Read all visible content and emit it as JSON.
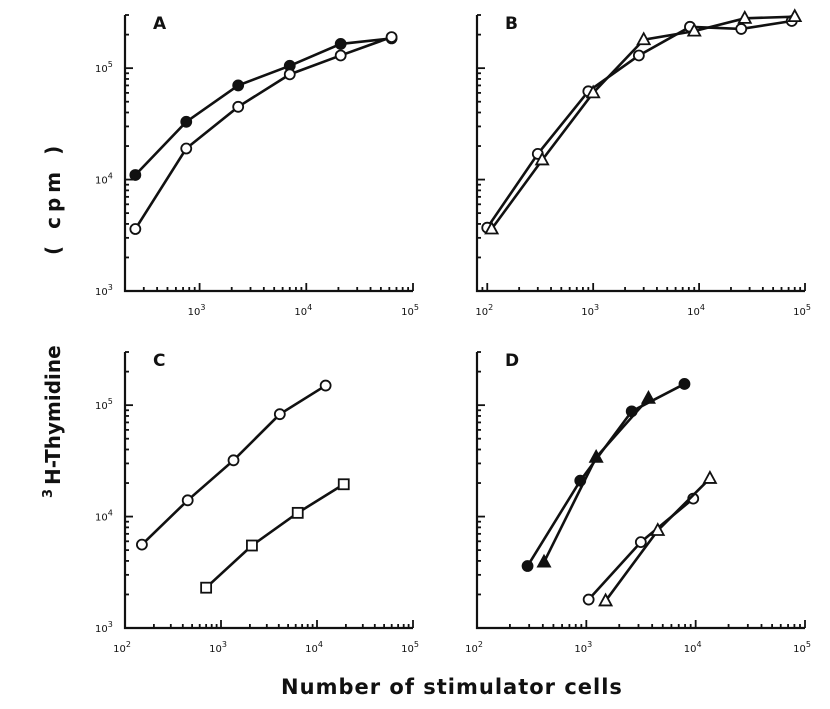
{
  "figure": {
    "xlabel": "Number of stimulator cells",
    "ylabel_main": "H-Thymidine",
    "ylabel_sup": "3",
    "ylabel_unit": "( cpm )"
  },
  "chart_data": [
    {
      "type": "line",
      "panel": "A",
      "xscale": "log",
      "yscale": "log",
      "xlim": [
        200,
        100000
      ],
      "ylim": [
        1000,
        300000
      ],
      "xticks": [
        {
          "exp": "3"
        },
        {
          "exp": "4"
        },
        {
          "exp": "5"
        }
      ],
      "yticks": [
        {
          "exp": "3"
        },
        {
          "exp": "4"
        },
        {
          "exp": "5"
        }
      ],
      "series": [
        {
          "marker": "circle-filled",
          "x": [
            250,
            750,
            2300,
            7000,
            21000,
            63000
          ],
          "y": [
            11000,
            33000,
            70000,
            105000,
            165000,
            185000
          ]
        },
        {
          "marker": "circle-open",
          "x": [
            250,
            750,
            2300,
            7000,
            21000,
            63000
          ],
          "y": [
            3600,
            19000,
            45000,
            88000,
            130000,
            190000
          ]
        }
      ]
    },
    {
      "type": "line",
      "panel": "B",
      "xscale": "log",
      "yscale": "log",
      "xlim": [
        80,
        100000
      ],
      "ylim": [
        1000,
        300000
      ],
      "xticks": [
        {
          "exp": "2"
        },
        {
          "exp": "3"
        },
        {
          "exp": "4"
        },
        {
          "exp": "5"
        }
      ],
      "yticks": [],
      "series": [
        {
          "marker": "circle-open",
          "x": [
            100,
            300,
            900,
            2700,
            8200,
            25000,
            75000
          ],
          "y": [
            3700,
            17000,
            62000,
            130000,
            235000,
            225000,
            265000
          ]
        },
        {
          "marker": "triangle-open",
          "x": [
            110,
            330,
            1000,
            3000,
            9000,
            27000,
            80000
          ],
          "y": [
            3600,
            15000,
            60000,
            180000,
            215000,
            280000,
            290000
          ]
        }
      ]
    },
    {
      "type": "line",
      "panel": "C",
      "xscale": "log",
      "yscale": "log",
      "xlim": [
        100,
        100000
      ],
      "ylim": [
        1000,
        300000
      ],
      "xticks": [
        {
          "exp": "2"
        },
        {
          "exp": "3"
        },
        {
          "exp": "4"
        },
        {
          "exp": "5"
        }
      ],
      "yticks": [
        {
          "exp": "3"
        },
        {
          "exp": "4"
        },
        {
          "exp": "5"
        }
      ],
      "series": [
        {
          "marker": "circle-open",
          "x": [
            150,
            450,
            1350,
            4100,
            12300
          ],
          "y": [
            5600,
            14000,
            32000,
            83000,
            150000
          ]
        },
        {
          "marker": "square-open",
          "x": [
            700,
            2100,
            6300,
            19000
          ],
          "y": [
            2300,
            5500,
            10800,
            19500
          ]
        }
      ]
    },
    {
      "type": "line",
      "panel": "D",
      "xscale": "log",
      "yscale": "log",
      "xlim": [
        100,
        100000
      ],
      "ylim": [
        1000,
        300000
      ],
      "xticks": [
        {
          "exp": "2"
        },
        {
          "exp": "3"
        },
        {
          "exp": "4"
        },
        {
          "exp": "5"
        }
      ],
      "yticks": [],
      "series": [
        {
          "marker": "circle-filled",
          "x": [
            290,
            880,
            2600,
            7900
          ],
          "y": [
            3600,
            21000,
            88000,
            155000
          ]
        },
        {
          "marker": "triangle-filled",
          "x": [
            410,
            1230,
            3700
          ],
          "y": [
            3900,
            34000,
            115000
          ]
        },
        {
          "marker": "circle-open",
          "x": [
            1050,
            3150,
            9500
          ],
          "y": [
            1800,
            5900,
            14500
          ]
        },
        {
          "marker": "triangle-open",
          "x": [
            1500,
            4500,
            13500
          ],
          "y": [
            1750,
            7500,
            22000
          ]
        }
      ]
    }
  ]
}
